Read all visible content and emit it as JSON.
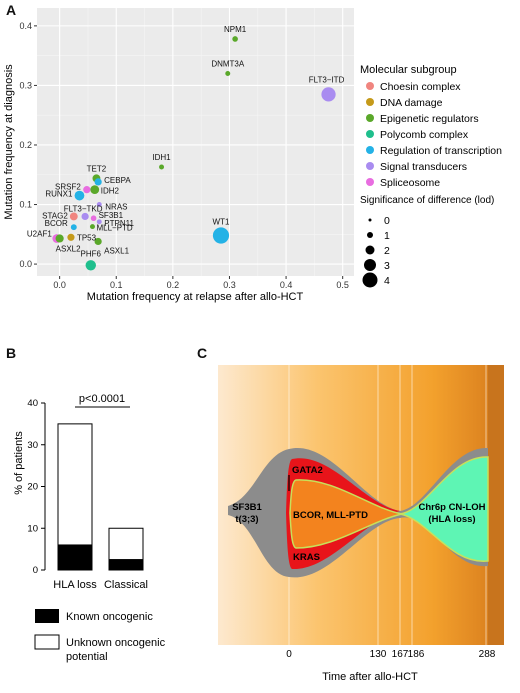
{
  "panels": {
    "a": {
      "letter": "A",
      "legend_title": "Molecular subgroup",
      "size_legend_title": "Significance of difference (lod)",
      "chart_data": {
        "type": "scatter",
        "xlabel": "Mutation frequency at relapse after allo-HCT",
        "ylabel": "Mutation frequency at diagnosis",
        "xlim": [
          -0.04,
          0.52
        ],
        "ylim": [
          -0.02,
          0.43
        ],
        "xticks": [
          "0.0",
          "0.1",
          "0.2",
          "0.3",
          "0.4",
          "0.5"
        ],
        "yticks": [
          "0.0",
          "0.1",
          "0.2",
          "0.3",
          "0.4"
        ],
        "grid": true,
        "legend_position": "right",
        "groups": [
          {
            "name": "Choesin complex",
            "color": "#f0857f"
          },
          {
            "name": "DNA damage",
            "color": "#c59a1a"
          },
          {
            "name": "Epigenetic regulators",
            "color": "#5aa82a"
          },
          {
            "name": "Polycomb complex",
            "color": "#1fbf8d"
          },
          {
            "name": "Regulation of transcription",
            "color": "#24b2e6"
          },
          {
            "name": "Signal transducers",
            "color": "#a98cf0"
          },
          {
            "name": "Spliceosome",
            "color": "#e86de0"
          }
        ],
        "size_levels": [
          "0",
          "1",
          "2",
          "3",
          "4"
        ],
        "points": [
          {
            "label": "NPM1",
            "x": 0.31,
            "y": 0.378,
            "group": 2,
            "lod": 0.5
          },
          {
            "label": "DNMT3A",
            "x": 0.297,
            "y": 0.32,
            "group": 2,
            "lod": 0.3
          },
          {
            "label": "FLT3−ITD",
            "x": 0.475,
            "y": 0.285,
            "group": 5,
            "lod": 3.2
          },
          {
            "label": "IDH1",
            "x": 0.18,
            "y": 0.163,
            "group": 2,
            "lod": 0.3
          },
          {
            "label": "WT1",
            "x": 0.285,
            "y": 0.048,
            "group": 4,
            "lod": 3.8
          },
          {
            "label": "TET2",
            "x": 0.065,
            "y": 0.144,
            "group": 2,
            "lod": 1.2
          },
          {
            "label": "CEBPA",
            "x": 0.068,
            "y": 0.138,
            "group": 4,
            "lod": 1.0
          },
          {
            "label": "IDH2",
            "x": 0.062,
            "y": 0.125,
            "group": 2,
            "lod": 1.5
          },
          {
            "label": "SRSF2",
            "x": 0.048,
            "y": 0.125,
            "group": 6,
            "lod": 1.0
          },
          {
            "label": "RUNX1",
            "x": 0.035,
            "y": 0.115,
            "group": 4,
            "lod": 1.8
          },
          {
            "label": "NRAS",
            "x": 0.07,
            "y": 0.1,
            "group": 5,
            "lod": 0.3
          },
          {
            "label": "STAG2",
            "x": 0.025,
            "y": 0.08,
            "group": 0,
            "lod": 1.2
          },
          {
            "label": "FLT3−TKD",
            "x": 0.045,
            "y": 0.08,
            "group": 5,
            "lod": 1.0
          },
          {
            "label": "SF3B1",
            "x": 0.06,
            "y": 0.077,
            "group": 6,
            "lod": 0.5
          },
          {
            "label": "PTPN11",
            "x": 0.07,
            "y": 0.071,
            "group": 5,
            "lod": 0.3
          },
          {
            "label": "BCOR",
            "x": 0.025,
            "y": 0.062,
            "group": 4,
            "lod": 0.6
          },
          {
            "label": "MLL−PTD",
            "x": 0.058,
            "y": 0.063,
            "group": 2,
            "lod": 0.3
          },
          {
            "label": "U2AF1",
            "x": -0.005,
            "y": 0.043,
            "group": 6,
            "lod": 1.5
          },
          {
            "label": "TP53",
            "x": 0.02,
            "y": 0.045,
            "group": 1,
            "lod": 1.0
          },
          {
            "label": "ASXL2",
            "x": 0.0,
            "y": 0.043,
            "group": 2,
            "lod": 1.3
          },
          {
            "label": "ASXL1",
            "x": 0.068,
            "y": 0.038,
            "group": 2,
            "lod": 1.0
          },
          {
            "label": "PHF6",
            "x": 0.055,
            "y": -0.002,
            "group": 3,
            "lod": 2.0
          }
        ]
      }
    },
    "b": {
      "letter": "B",
      "pvalue": "p<0.0001",
      "legend_known": "Known oncogenic",
      "legend_unknown_1": "Unknown oncogenic",
      "legend_unknown_2": "potential",
      "chart_data": {
        "type": "bar",
        "stacked": true,
        "categories": [
          "HLA loss",
          "Classical"
        ],
        "series": [
          {
            "name": "Known oncogenic",
            "values": [
              6,
              2.5
            ],
            "color": "#000000"
          },
          {
            "name": "Unknown oncogenic potential",
            "values": [
              29,
              7.5
            ],
            "color": "#ffffff"
          }
        ],
        "ylabel": "% of patients",
        "ylim": [
          0,
          40
        ],
        "yticks": [
          "0",
          "10",
          "20",
          "30",
          "40"
        ]
      }
    },
    "c": {
      "letter": "C",
      "xlabel": "Time after allo-HCT",
      "tick_labels": [
        "0",
        "130",
        "167",
        "186",
        "288"
      ],
      "clone_labels": {
        "founder_1": "SF3B1",
        "founder_2": "t(3;3)",
        "gata2": "GATA2",
        "bcor": "BCOR, MLL-PTD",
        "kras": "KRAS",
        "cnloh_1": "Chr6p CN-LOH",
        "cnloh_2": "(HLA loss)"
      },
      "colors": {
        "founder": "#8c8c8c",
        "red_clone": "#e8141a",
        "orange_clone": "#f3831e",
        "green_clone": "#5ef5b4",
        "outline": "#c8e05a"
      }
    }
  }
}
